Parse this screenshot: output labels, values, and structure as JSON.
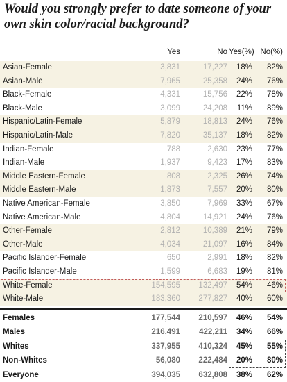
{
  "title": "Would you strongly prefer to date someone of your own skin color/racial background?",
  "chart_data": {
    "type": "table",
    "columns": [
      "",
      "Yes",
      "No",
      "Yes(%)",
      "No(%)"
    ],
    "rows": [
      {
        "label": "Asian-Female",
        "yes": "3,831",
        "no": "17,227",
        "yes_pct": "18%",
        "no_pct": "82%"
      },
      {
        "label": "Asian-Male",
        "yes": "7,965",
        "no": "25,358",
        "yes_pct": "24%",
        "no_pct": "76%"
      },
      {
        "label": "Black-Female",
        "yes": "4,331",
        "no": "15,756",
        "yes_pct": "22%",
        "no_pct": "78%"
      },
      {
        "label": "Black-Male",
        "yes": "3,099",
        "no": "24,208",
        "yes_pct": "11%",
        "no_pct": "89%"
      },
      {
        "label": "Hispanic/Latin-Female",
        "yes": "5,879",
        "no": "18,813",
        "yes_pct": "24%",
        "no_pct": "76%"
      },
      {
        "label": "Hispanic/Latin-Male",
        "yes": "7,820",
        "no": "35,137",
        "yes_pct": "18%",
        "no_pct": "82%"
      },
      {
        "label": "Indian-Female",
        "yes": "788",
        "no": "2,630",
        "yes_pct": "23%",
        "no_pct": "77%"
      },
      {
        "label": "Indian-Male",
        "yes": "1,937",
        "no": "9,423",
        "yes_pct": "17%",
        "no_pct": "83%"
      },
      {
        "label": "Middle Eastern-Female",
        "yes": "808",
        "no": "2,325",
        "yes_pct": "26%",
        "no_pct": "74%"
      },
      {
        "label": "Middle Eastern-Male",
        "yes": "1,873",
        "no": "7,557",
        "yes_pct": "20%",
        "no_pct": "80%"
      },
      {
        "label": "Native American-Female",
        "yes": "3,850",
        "no": "7,969",
        "yes_pct": "33%",
        "no_pct": "67%"
      },
      {
        "label": "Native American-Male",
        "yes": "4,804",
        "no": "14,921",
        "yes_pct": "24%",
        "no_pct": "76%"
      },
      {
        "label": "Other-Female",
        "yes": "2,812",
        "no": "10,389",
        "yes_pct": "21%",
        "no_pct": "79%"
      },
      {
        "label": "Other-Male",
        "yes": "4,034",
        "no": "21,097",
        "yes_pct": "16%",
        "no_pct": "84%"
      },
      {
        "label": "Pacific Islander-Female",
        "yes": "650",
        "no": "2,991",
        "yes_pct": "18%",
        "no_pct": "82%"
      },
      {
        "label": "Pacific Islander-Male",
        "yes": "1,599",
        "no": "6,683",
        "yes_pct": "19%",
        "no_pct": "81%"
      },
      {
        "label": "White-Female",
        "yes": "154,595",
        "no": "132,497",
        "yes_pct": "54%",
        "no_pct": "46%"
      },
      {
        "label": "White-Male",
        "yes": "183,360",
        "no": "277,827",
        "yes_pct": "40%",
        "no_pct": "60%"
      }
    ],
    "summary_rows": [
      {
        "label": "Females",
        "yes": "177,544",
        "no": "210,597",
        "yes_pct": "46%",
        "no_pct": "54%"
      },
      {
        "label": "Males",
        "yes": "216,491",
        "no": "422,211",
        "yes_pct": "34%",
        "no_pct": "66%"
      },
      {
        "label": "Whites",
        "yes": "337,955",
        "no": "410,324",
        "yes_pct": "45%",
        "no_pct": "55%"
      },
      {
        "label": "Non-Whites",
        "yes": "56,080",
        "no": "222,484",
        "yes_pct": "20%",
        "no_pct": "80%"
      },
      {
        "label": "Everyone",
        "yes": "394,035",
        "no": "632,808",
        "yes_pct": "38%",
        "no_pct": "62%"
      }
    ],
    "shaded_rows": [
      0,
      1,
      4,
      5,
      8,
      9,
      12,
      13,
      16,
      17
    ],
    "colors": {
      "shade": "#f6f2e3",
      "highlight_dashed": "#c25b5b",
      "muted_numbers": "#b0b0b0"
    }
  }
}
